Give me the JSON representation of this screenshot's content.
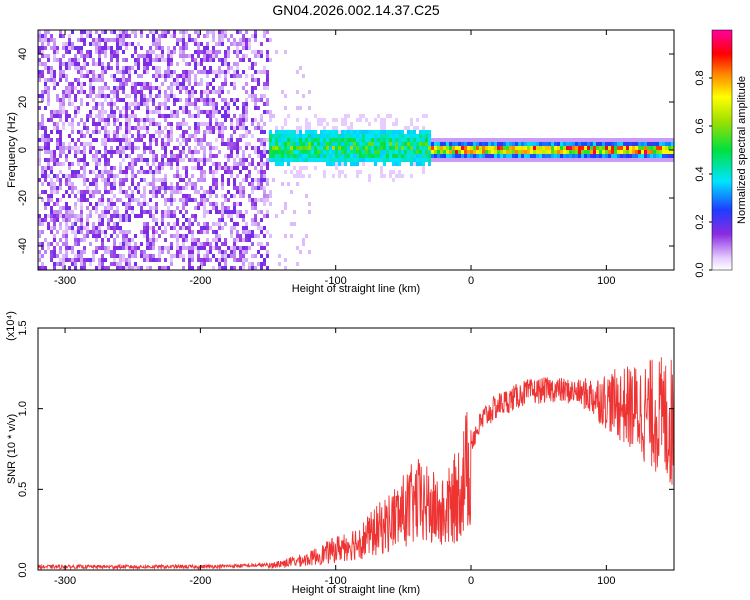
{
  "title": "GN04.2026.002.14.37.C25",
  "chart_data": [
    {
      "type": "heatmap",
      "xlabel": "Height of straight line (km)",
      "ylabel": "Frequency (Hz)",
      "xlim": [
        -320,
        150
      ],
      "ylim": [
        -50,
        50
      ],
      "x_ticks": [
        "-300",
        "-200",
        "-100",
        "0",
        "100"
      ],
      "y_ticks": [
        "-40",
        "-20",
        "0",
        "20",
        "40"
      ],
      "colorbar": {
        "label": "Normalized spectral amplitude",
        "range": [
          0.0,
          1.0
        ],
        "ticks": [
          "0.0",
          "0.2",
          "0.4",
          "0.6",
          "0.8"
        ]
      },
      "regions": [
        {
          "x_range": [
            -320,
            -150
          ],
          "description_level": "noise",
          "freq_range": [
            -50,
            50
          ],
          "amplitude": 0.15
        },
        {
          "x_range": [
            -150,
            -30
          ],
          "freq_center": 2,
          "freq_halfwidth": 6,
          "amplitude": 0.45
        },
        {
          "x_range": [
            -30,
            150
          ],
          "freq_center": 1,
          "freq_halfwidth": 2,
          "amplitude": 0.85
        }
      ]
    },
    {
      "type": "line",
      "xlabel": "Height of straight line (km)",
      "ylabel": "SNR (10 * v/v)",
      "y_multiplier": "(x10⁴)",
      "xlim": [
        -320,
        150
      ],
      "ylim": [
        0.0,
        1.5
      ],
      "x_ticks": [
        "-300",
        "-200",
        "-100",
        "0",
        "100"
      ],
      "y_ticks": [
        "0.0",
        "0.5",
        "1.0",
        "1.5"
      ],
      "color": "#ee3333",
      "envelope": [
        {
          "x": -320,
          "y": 0.02
        },
        {
          "x": -200,
          "y": 0.02
        },
        {
          "x": -150,
          "y": 0.03
        },
        {
          "x": -120,
          "y": 0.08
        },
        {
          "x": -100,
          "y": 0.15
        },
        {
          "x": -80,
          "y": 0.22
        },
        {
          "x": -60,
          "y": 0.35
        },
        {
          "x": -40,
          "y": 0.5
        },
        {
          "x": -30,
          "y": 0.45
        },
        {
          "x": -20,
          "y": 0.4
        },
        {
          "x": -10,
          "y": 0.55
        },
        {
          "x": 0,
          "y": 0.8
        },
        {
          "x": 10,
          "y": 0.95
        },
        {
          "x": 20,
          "y": 1.02
        },
        {
          "x": 40,
          "y": 1.1
        },
        {
          "x": 60,
          "y": 1.12
        },
        {
          "x": 80,
          "y": 1.1
        },
        {
          "x": 100,
          "y": 1.05
        },
        {
          "x": 120,
          "y": 1.0
        },
        {
          "x": 140,
          "y": 0.95
        },
        {
          "x": 150,
          "y": 0.9
        }
      ]
    }
  ]
}
